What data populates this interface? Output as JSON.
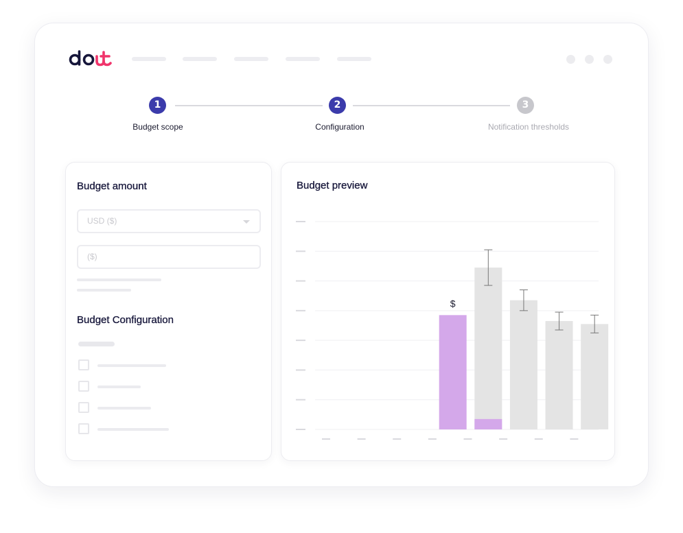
{
  "app": {
    "logo_text": "doit",
    "colors": {
      "brand_dark": "#16163a",
      "brand_pink": "#f0346b",
      "accent": "#3b3bab",
      "actual": "#d4a8ea",
      "forecast": "#e4e4e4"
    }
  },
  "stepper": {
    "steps": [
      {
        "number": "1",
        "label": "Budget scope",
        "state": "complete"
      },
      {
        "number": "2",
        "label": "Configuration",
        "state": "active"
      },
      {
        "number": "3",
        "label": "Notification thresholds",
        "state": "inactive"
      }
    ]
  },
  "budget_amount": {
    "title": "Budget amount",
    "currency_select": {
      "placeholder": "USD ($)",
      "icon": "chevron-down-icon"
    },
    "amount_input": {
      "placeholder": "($)"
    }
  },
  "budget_configuration": {
    "title": "Budget Configuration",
    "options": [
      {
        "checked": false
      },
      {
        "checked": false
      },
      {
        "checked": false
      },
      {
        "checked": false
      }
    ]
  },
  "budget_preview": {
    "title": "Budget preview",
    "chart_data": {
      "type": "bar",
      "title": "",
      "xlabel": "",
      "ylabel": "",
      "categories": [
        "",
        "",
        "",
        "",
        "",
        "",
        "",
        ""
      ],
      "ylim": [
        0,
        7
      ],
      "grid": true,
      "legend": "none",
      "series": [
        {
          "values": [
            0,
            0,
            0,
            3.85,
            0.35,
            0,
            0,
            0
          ]
        },
        {
          "values": [
            0,
            0,
            0,
            0,
            5.45,
            4.35,
            3.65,
            3.55
          ],
          "error": [
            0,
            0,
            0,
            0,
            0.6,
            0.35,
            0.3,
            0.3
          ]
        }
      ],
      "annotations": [
        {
          "category_index": 3,
          "text": "$"
        }
      ]
    }
  }
}
